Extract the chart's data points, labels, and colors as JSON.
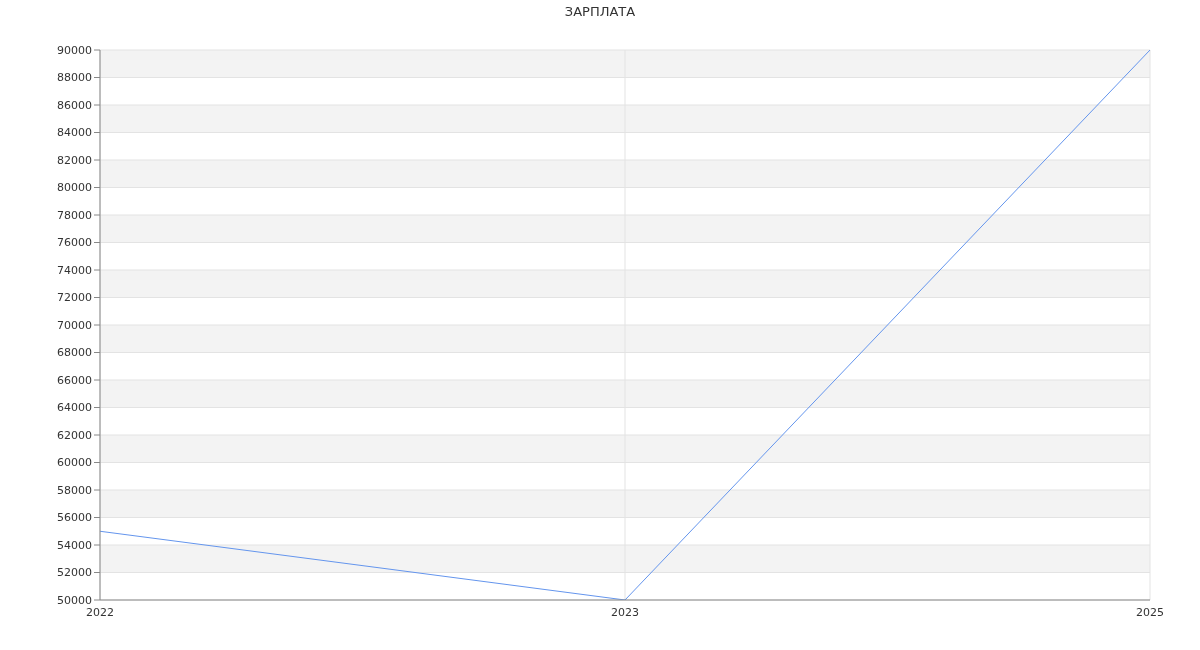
{
  "chart_data": {
    "type": "line",
    "title": "ЗАРПЛАТА",
    "categories": [
      "2022",
      "2023",
      "2025"
    ],
    "series": [
      {
        "color": "#6495ed",
        "values": [
          55000,
          50000,
          90000
        ]
      }
    ],
    "ylim": [
      50000,
      90000
    ],
    "yticks": [
      50000,
      52000,
      54000,
      56000,
      58000,
      60000,
      62000,
      64000,
      66000,
      68000,
      70000,
      72000,
      74000,
      76000,
      78000,
      80000,
      82000,
      84000,
      86000,
      88000,
      90000
    ],
    "grid": true
  }
}
